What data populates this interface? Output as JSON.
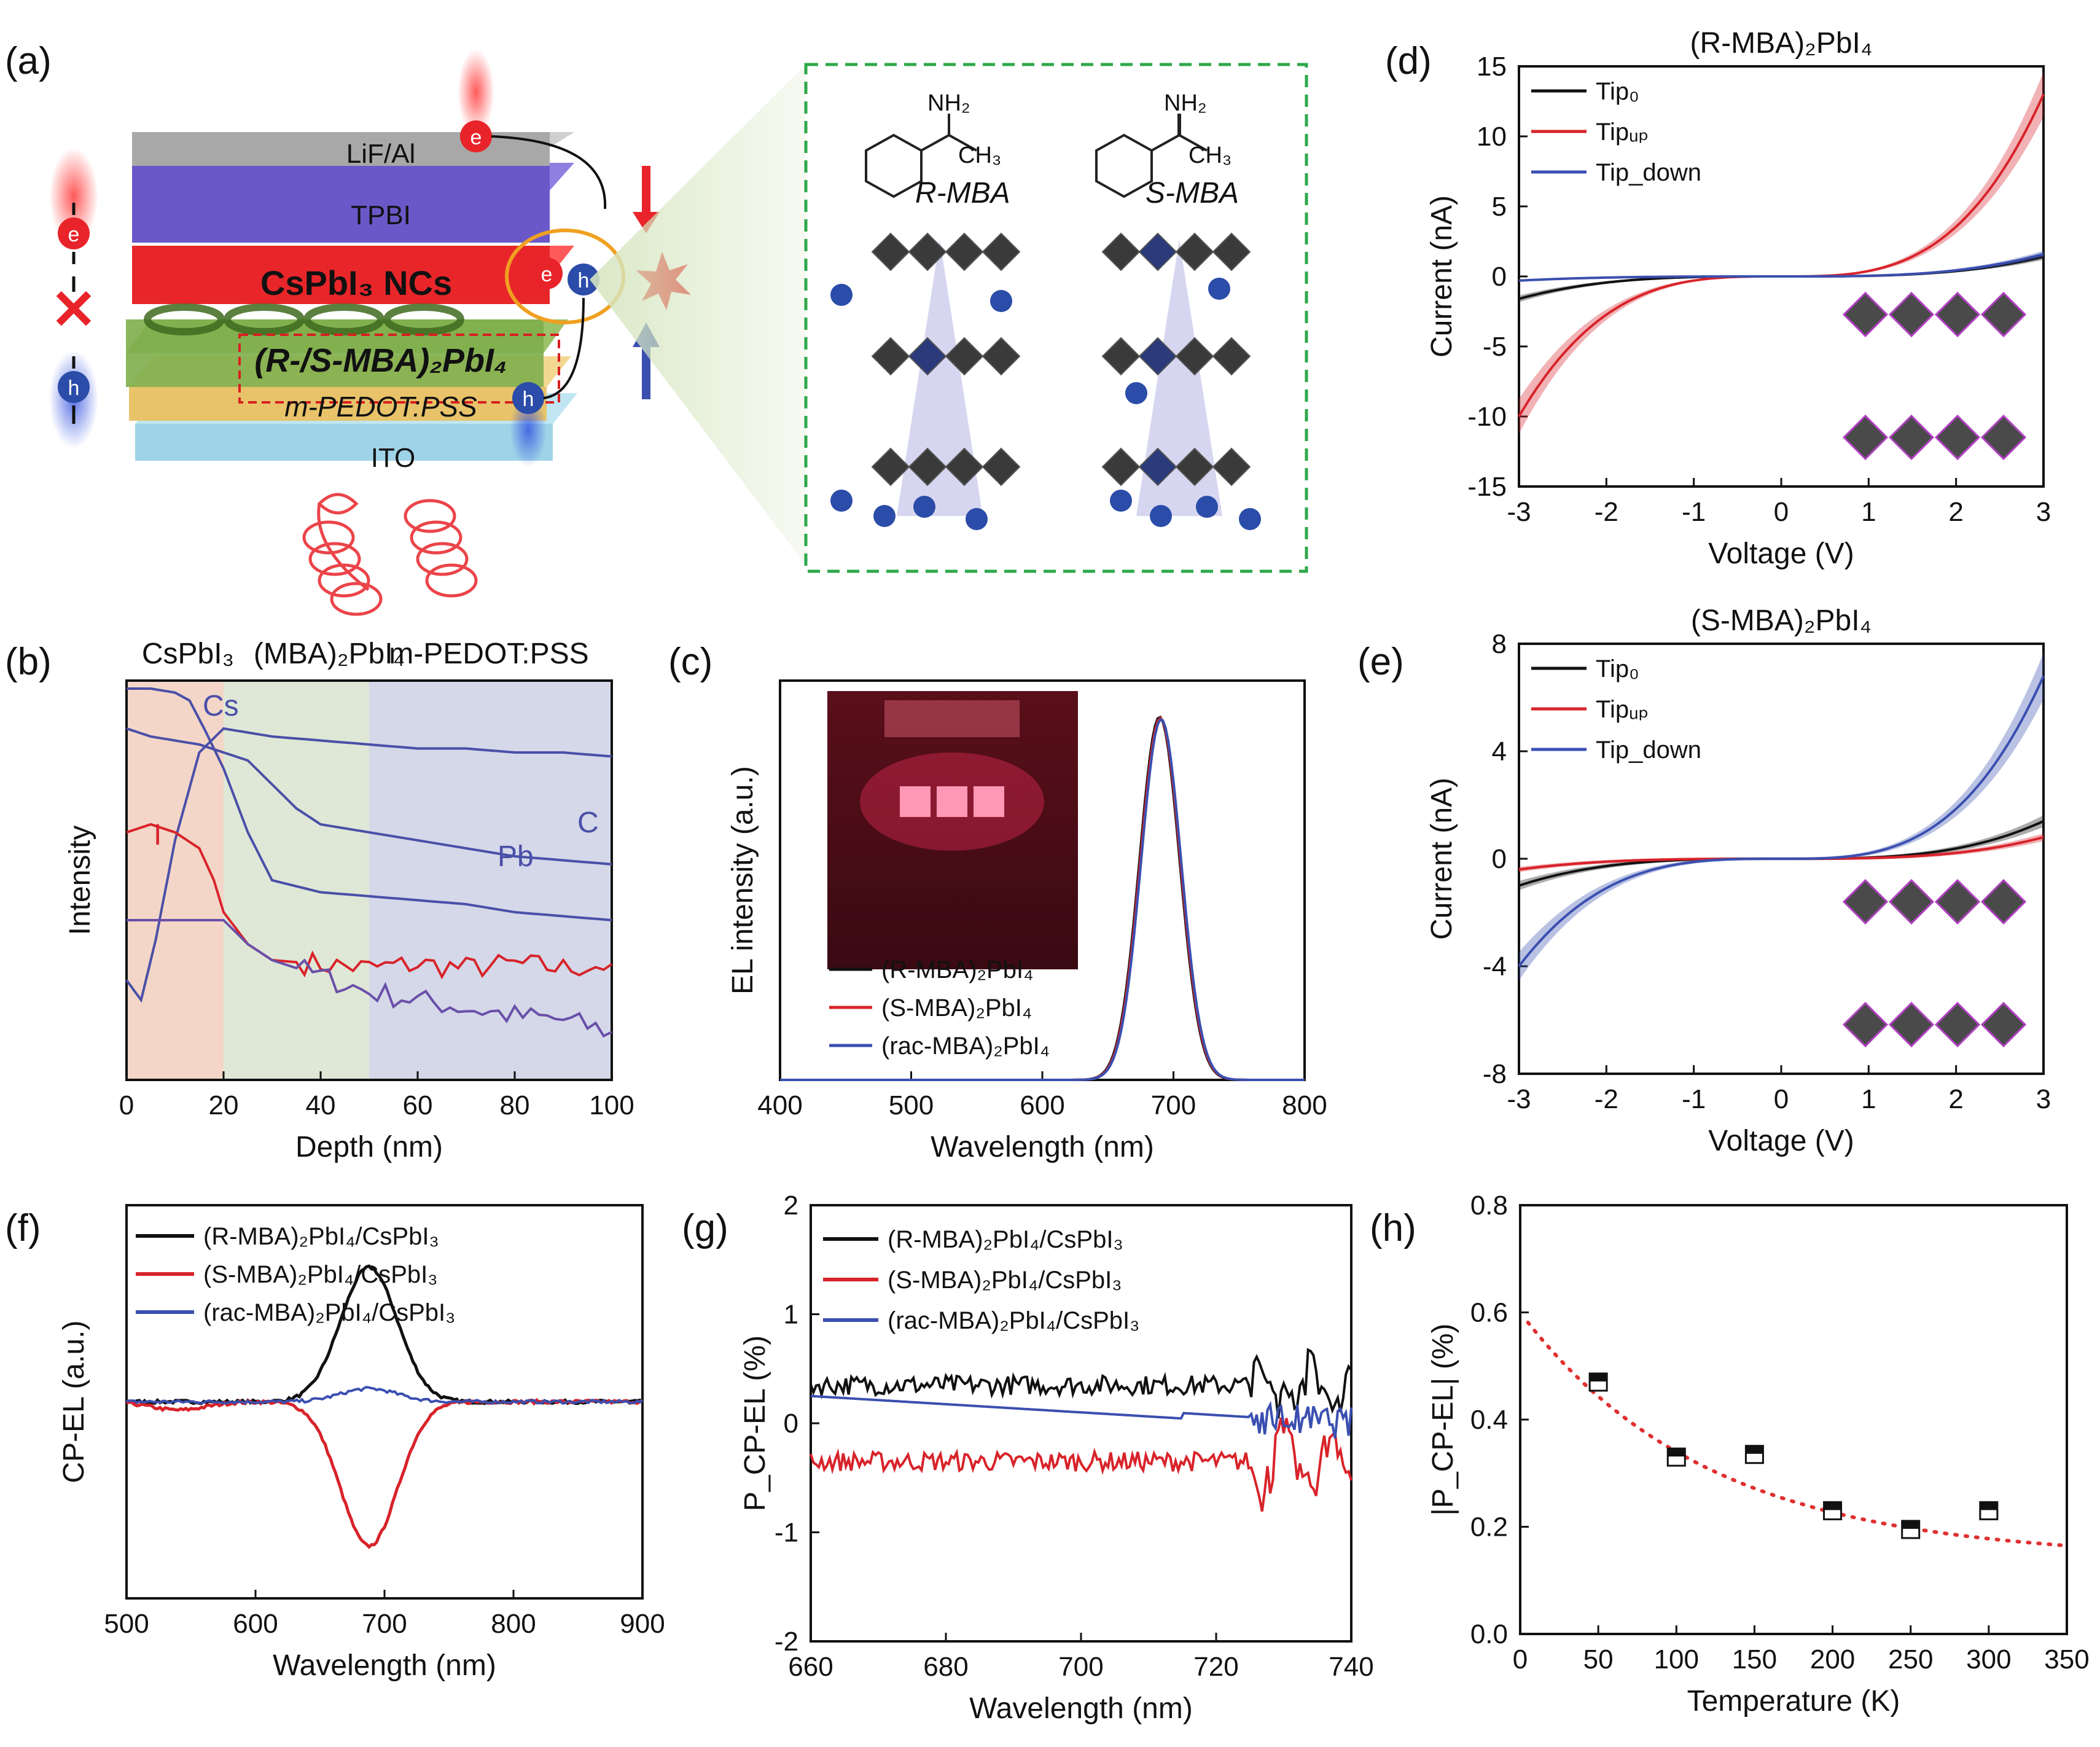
{
  "panel_labels": {
    "a": "(a)",
    "b": "(b)",
    "c": "(c)",
    "d": "(d)",
    "e": "(e)",
    "f": "(f)",
    "g": "(g)",
    "h": "(h)"
  },
  "panel_a": {
    "layers": [
      "LiF/Al",
      "TPBI",
      "CsPbI₃ NCs",
      "(R-/S-MBA)₂PbI₄",
      "m-PEDOT:PSS",
      "ITO"
    ],
    "carriers": {
      "e": "e",
      "h": "h"
    },
    "molecules": {
      "nh2": "NH₂",
      "ch3": "CH₃",
      "r_label": "R-MBA",
      "s_label": "S-MBA"
    },
    "colors": {
      "electron": "#e8242a",
      "hole": "#2b4ca8",
      "frame": "#2ea84a"
    }
  },
  "chart_data": [
    {
      "id": "b",
      "type": "line",
      "title_regions": [
        "CsPbI₃",
        "(MBA)₂PbI₄",
        "m-PEDOT:PSS"
      ],
      "xlabel": "Depth (nm)",
      "ylabel": "Intensity",
      "xlim": [
        0,
        100
      ],
      "ylim": [
        0,
        1
      ],
      "xticks": [
        0,
        20,
        40,
        60,
        80,
        100
      ],
      "region_bounds": [
        0,
        20,
        50,
        100
      ],
      "series": [
        {
          "name": "Cs",
          "color": "#4a4fa8",
          "x": [
            0,
            5,
            10,
            13,
            16,
            20,
            25,
            30,
            40,
            50,
            60,
            70,
            80,
            90,
            100
          ],
          "y": [
            0.98,
            0.98,
            0.97,
            0.95,
            0.88,
            0.78,
            0.62,
            0.5,
            0.47,
            0.46,
            0.45,
            0.44,
            0.42,
            0.41,
            0.4
          ]
        },
        {
          "name": "C",
          "color": "#4a4fa8",
          "x": [
            0,
            3,
            6,
            10,
            15,
            20,
            25,
            30,
            40,
            50,
            60,
            70,
            80,
            90,
            100
          ],
          "y": [
            0.25,
            0.2,
            0.35,
            0.6,
            0.82,
            0.88,
            0.87,
            0.86,
            0.85,
            0.84,
            0.83,
            0.83,
            0.82,
            0.82,
            0.81
          ]
        },
        {
          "name": "Pb",
          "color": "#4a4fa8",
          "x": [
            0,
            5,
            10,
            15,
            20,
            25,
            30,
            35,
            40,
            50,
            60,
            70,
            80,
            90,
            100
          ],
          "y": [
            0.88,
            0.86,
            0.85,
            0.84,
            0.82,
            0.8,
            0.74,
            0.68,
            0.64,
            0.62,
            0.6,
            0.58,
            0.56,
            0.55,
            0.54
          ]
        },
        {
          "name": "I",
          "color": "#d8232a",
          "x": [
            0,
            5,
            10,
            15,
            18,
            20,
            25,
            30,
            40,
            50,
            60,
            70,
            80,
            90,
            100
          ],
          "y": [
            0.62,
            0.64,
            0.62,
            0.58,
            0.5,
            0.42,
            0.34,
            0.3,
            0.29,
            0.28,
            0.29,
            0.28,
            0.29,
            0.28,
            0.29
          ]
        },
        {
          "name": "",
          "color": "#6a4fa8",
          "x": [
            0,
            10,
            20,
            25,
            30,
            40,
            50,
            60,
            70,
            80,
            90,
            100
          ],
          "y": [
            0.4,
            0.4,
            0.4,
            0.34,
            0.3,
            0.26,
            0.22,
            0.2,
            0.18,
            0.16,
            0.15,
            0.12
          ]
        }
      ]
    },
    {
      "id": "c",
      "type": "line",
      "xlabel": "Wavelength (nm)",
      "ylabel": "EL intensity (a.u.)",
      "xlim": [
        400,
        800
      ],
      "ylim": [
        0,
        1.1
      ],
      "xticks": [
        400,
        500,
        600,
        700,
        800
      ],
      "peak": 690,
      "fwhm": 36,
      "series": [
        {
          "name": "(R-MBA)₂PbI₄",
          "color": "#111111"
        },
        {
          "name": "(S-MBA)₂PbI₄",
          "color": "#d8232a"
        },
        {
          "name": "(rac-MBA)₂PbI₄",
          "color": "#3a4fb0"
        }
      ]
    },
    {
      "id": "d",
      "type": "line",
      "title": "(R-MBA)₂PbI₄",
      "xlabel": "Voltage (V)",
      "ylabel": "Current (nA)",
      "xlim": [
        -3,
        3
      ],
      "ylim": [
        -15,
        15
      ],
      "xticks": [
        -3,
        -2,
        -1,
        0,
        1,
        2,
        3
      ],
      "yticks": [
        -15,
        -10,
        -5,
        0,
        5,
        10,
        15
      ],
      "series": [
        {
          "name": "Tip₀",
          "color": "#111111",
          "a_neg": -1.6,
          "a_pos": 1.4
        },
        {
          "name": "Tipᵤₚ",
          "color": "#d8232a",
          "a_neg": -10.0,
          "a_pos": 13.0
        },
        {
          "name": "Tip_down",
          "label_main": "Tip",
          "label_sub": "down",
          "color": "#3a4fb0",
          "a_neg": -0.3,
          "a_pos": 1.6
        }
      ]
    },
    {
      "id": "e",
      "type": "line",
      "title": "(S-MBA)₂PbI₄",
      "xlabel": "Voltage (V)",
      "ylabel": "Current (nA)",
      "xlim": [
        -3,
        3
      ],
      "ylim": [
        -8,
        8
      ],
      "xticks": [
        -3,
        -2,
        -1,
        0,
        1,
        2,
        3
      ],
      "yticks": [
        -8,
        -4,
        0,
        4,
        8
      ],
      "series": [
        {
          "name": "Tip₀",
          "color": "#111111",
          "a_neg": -1.0,
          "a_pos": 1.4
        },
        {
          "name": "Tipᵤₚ",
          "color": "#d8232a",
          "a_neg": -0.4,
          "a_pos": 0.8
        },
        {
          "name": "Tip_down",
          "label_main": "Tip",
          "label_sub": "down",
          "color": "#3a4fb0",
          "a_neg": -4.0,
          "a_pos": 6.8
        }
      ]
    },
    {
      "id": "f",
      "type": "line",
      "xlabel": "Wavelength (nm)",
      "ylabel": "CP-EL (a.u.)",
      "xlim": [
        500,
        900
      ],
      "ylim": [
        -1.2,
        1.2
      ],
      "xticks": [
        500,
        600,
        700,
        800,
        900
      ],
      "series": [
        {
          "name": "(R-MBA)₂PbI₄/CsPbI₃",
          "color": "#111111",
          "amp": 0.82
        },
        {
          "name": "(S-MBA)₂PbI₄/CsPbI₃",
          "color": "#d8232a",
          "amp": -0.88
        },
        {
          "name": "(rac-MBA)₂PbI₄/CsPbI₃",
          "color": "#3a4fb0",
          "amp": 0.08
        }
      ]
    },
    {
      "id": "g",
      "type": "line",
      "xlabel": "Wavelength (nm)",
      "ylabel": "P_CP-EL (%)",
      "xlim": [
        660,
        740
      ],
      "ylim": [
        -2,
        2
      ],
      "xticks": [
        660,
        680,
        700,
        720,
        740
      ],
      "yticks": [
        -2,
        -1,
        0,
        1,
        2
      ],
      "series": [
        {
          "name": "(R-MBA)₂PbI₄/CsPbI₃",
          "color": "#111111",
          "base": 0.35
        },
        {
          "name": "(S-MBA)₂PbI₄/CsPbI₃",
          "color": "#d8232a",
          "base": -0.35
        },
        {
          "name": "(rac-MBA)₂PbI₄/CsPbI₃",
          "color": "#3a4fb0",
          "base": 0.1
        }
      ]
    },
    {
      "id": "h",
      "type": "scatter",
      "xlabel": "Temperature (K)",
      "ylabel": "|P_CP-EL| (%)",
      "xlim": [
        0,
        350
      ],
      "ylim": [
        0,
        0.8
      ],
      "xticks": [
        0,
        50,
        100,
        150,
        200,
        250,
        300,
        350
      ],
      "yticks": [
        0.0,
        0.2,
        0.4,
        0.6,
        0.8
      ],
      "points": {
        "x": [
          50,
          100,
          150,
          200,
          250,
          300
        ],
        "y": [
          0.47,
          0.33,
          0.335,
          0.23,
          0.195,
          0.23
        ]
      },
      "fit": {
        "color": "#e03030",
        "y0": 0.6,
        "yinf": 0.14,
        "tau": 120
      }
    }
  ]
}
